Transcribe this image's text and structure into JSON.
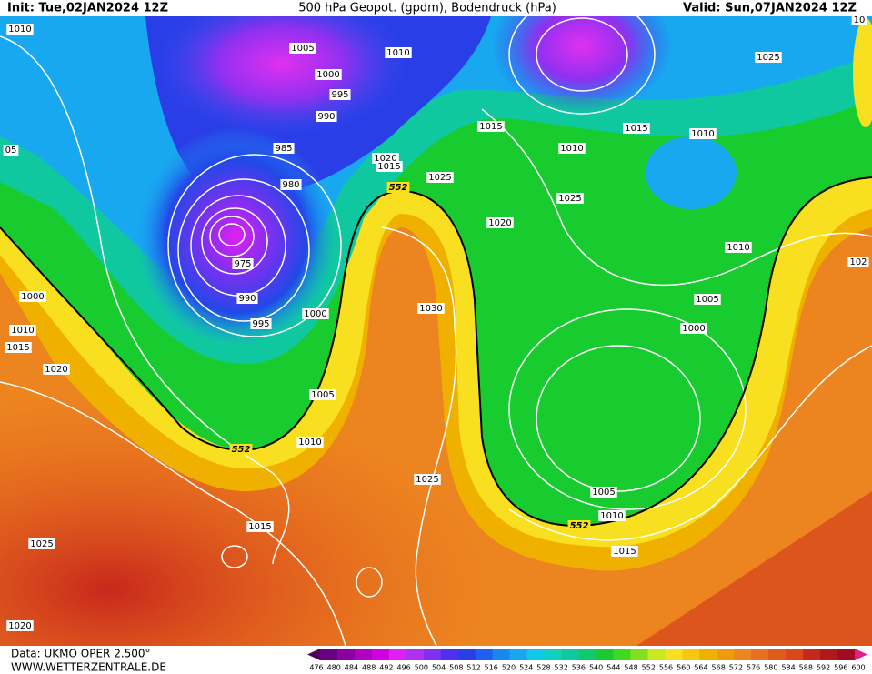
{
  "header": {
    "init": "Init: Tue,02JAN2024 12Z",
    "title": "500 hPa Geopot. (gpdm), Bodendruck (hPa)",
    "valid": "Valid: Sun,07JAN2024 12Z"
  },
  "isobar_labels": [
    "1010",
    "1005",
    "1010",
    "1000",
    "995",
    "990",
    "985",
    "980",
    "975",
    "990",
    "995",
    "1000",
    "1005",
    "1010",
    "1025",
    "1015",
    "1025",
    "1020",
    "1020",
    "1015",
    "1010",
    "1000",
    "1020",
    "1015",
    "1025",
    "1030",
    "1015",
    "1010",
    "1015",
    "1010",
    "1025",
    "1025",
    "1020",
    "1010",
    "1005",
    "1000",
    "1005",
    "1010",
    "1015",
    "05",
    "102",
    "10"
  ],
  "contour_labels": [
    "552",
    "552",
    "552"
  ],
  "colorbar": {
    "labels": [
      476,
      480,
      484,
      488,
      492,
      496,
      500,
      504,
      508,
      512,
      516,
      520,
      524,
      528,
      532,
      536,
      540,
      544,
      548,
      552,
      556,
      560,
      564,
      568,
      572,
      576,
      580,
      584,
      588,
      592,
      596,
      600
    ],
    "colors": [
      "#50005a",
      "#6a0080",
      "#8a00a0",
      "#b000c0",
      "#d000e0",
      "#e020f0",
      "#b030f0",
      "#8030f0",
      "#5030f0",
      "#2a3ee8",
      "#2060f0",
      "#1888f0",
      "#18a8f0",
      "#10c8e8",
      "#10d0c0",
      "#10c8a0",
      "#10c870",
      "#18cc30",
      "#40d820",
      "#80e020",
      "#c8e820",
      "#f8e020",
      "#f8c810",
      "#f0b000",
      "#f09a10",
      "#ec8420",
      "#e87020",
      "#e05a1c",
      "#d8481c",
      "#c8281c",
      "#b0181c",
      "#a00c20",
      "#e0208a"
    ]
  },
  "footer": {
    "source": "Data: UKMO OPER 2.500°",
    "site": "WWW.WETTERZENTRALE.DE"
  }
}
